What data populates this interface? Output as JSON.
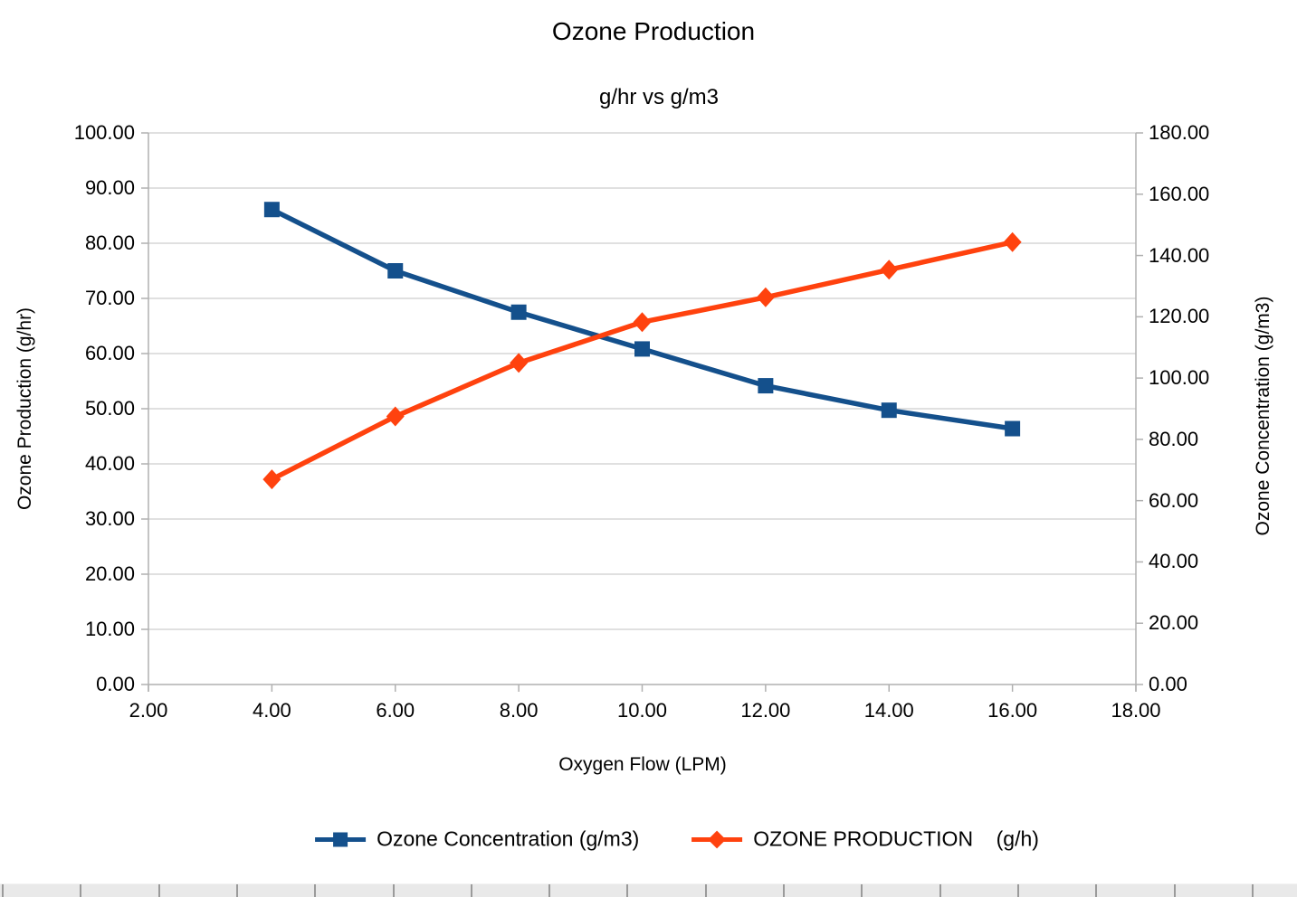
{
  "chart_data": {
    "type": "line",
    "title": "Ozone Production",
    "subtitle": "g/hr vs g/m3",
    "xlabel": "Oxygen Flow (LPM)",
    "ylabel_left": "Ozone Production (g/hr)",
    "ylabel_right": "Ozone Concentration (g/m3)",
    "x": [
      4,
      6,
      8,
      10,
      12,
      14,
      16
    ],
    "series": [
      {
        "name": "Ozone Concentration (g/m3)",
        "axis": "right",
        "marker": "square",
        "color": "#14508C",
        "values": [
          155,
          135,
          121.5,
          109.5,
          97.5,
          89.5,
          83.5
        ]
      },
      {
        "name": "OZONE PRODUCTION    (g/h)",
        "axis": "left",
        "marker": "diamond",
        "color": "#FF420E",
        "values": [
          37.2,
          48.6,
          58.3,
          65.7,
          70.2,
          75.2,
          80.2
        ]
      }
    ],
    "x_axis": {
      "min": 2,
      "max": 18,
      "step": 2
    },
    "left_axis": {
      "min": 0,
      "max": 100,
      "step": 10
    },
    "right_axis": {
      "min": 0,
      "max": 180,
      "step": 20
    },
    "tick_decimals": 2,
    "grid": "horizontal",
    "legend_position": "bottom",
    "colors": {
      "gridline": "#d5d5d5",
      "axis": "#b0b0b0",
      "text": "#000000",
      "background": "#ffffff",
      "strip_background": "#e9e9e9",
      "strip_line": "#9a9a9a"
    }
  }
}
